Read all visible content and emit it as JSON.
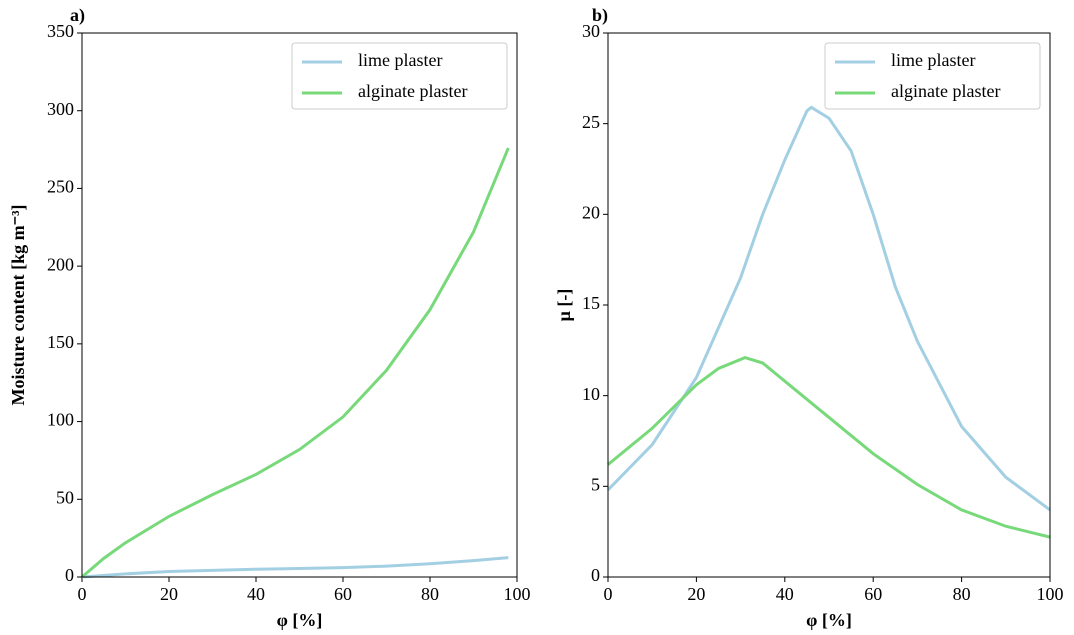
{
  "chart_data": [
    {
      "type": "line",
      "panel_label": "a)",
      "xlabel": "φ [%]",
      "ylabel": "Moisture content [kg m⁻³]",
      "xlim": [
        0,
        100
      ],
      "xticks": [
        0,
        20,
        40,
        60,
        80,
        100
      ],
      "ylim": [
        0,
        350
      ],
      "yticks": [
        0,
        50,
        100,
        150,
        200,
        250,
        300,
        350
      ],
      "legend": "upper right",
      "series": [
        {
          "name": "lime plaster",
          "color": "#a3cfe3",
          "x": [
            0,
            10,
            20,
            30,
            40,
            50,
            60,
            70,
            80,
            90,
            98
          ],
          "values": [
            0,
            2,
            3.5,
            4.3,
            5,
            5.5,
            6,
            7,
            8.5,
            10.5,
            12.5
          ]
        },
        {
          "name": "alginate plaster",
          "color": "#78d97a",
          "x": [
            0,
            5,
            10,
            20,
            30,
            40,
            50,
            60,
            70,
            80,
            90,
            98
          ],
          "values": [
            0,
            12,
            22,
            39,
            53,
            66,
            82,
            103,
            133,
            172,
            222,
            276
          ]
        }
      ]
    },
    {
      "type": "line",
      "panel_label": "b)",
      "xlabel": "φ [%]",
      "ylabel": "μ [-]",
      "xlim": [
        0,
        100
      ],
      "xticks": [
        0,
        20,
        40,
        60,
        80,
        100
      ],
      "ylim": [
        0,
        30
      ],
      "yticks": [
        0,
        5,
        10,
        15,
        20,
        25,
        30
      ],
      "legend": "upper right",
      "series": [
        {
          "name": "lime plaster",
          "color": "#a3cfe3",
          "x": [
            0,
            10,
            20,
            30,
            35,
            40,
            45,
            46,
            50,
            55,
            60,
            65,
            70,
            80,
            90,
            100
          ],
          "values": [
            4.8,
            7.3,
            11,
            16.5,
            20,
            23,
            25.7,
            25.9,
            25.3,
            23.5,
            20,
            16,
            13,
            8.3,
            5.5,
            3.7
          ]
        },
        {
          "name": "alginate plaster",
          "color": "#78d97a",
          "x": [
            0,
            10,
            20,
            25,
            31,
            35,
            40,
            50,
            60,
            70,
            80,
            90,
            100
          ],
          "values": [
            6.2,
            8.2,
            10.6,
            11.5,
            12.1,
            11.8,
            10.8,
            8.8,
            6.8,
            5.1,
            3.7,
            2.8,
            2.2
          ]
        }
      ]
    }
  ]
}
